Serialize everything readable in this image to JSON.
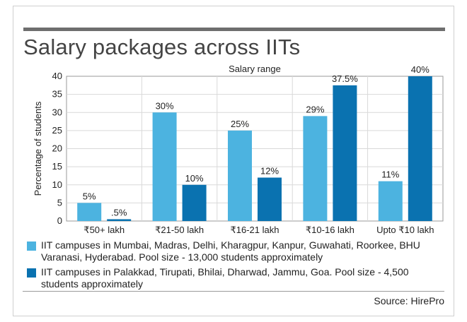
{
  "title": "Salary packages across IITs",
  "chart_data": {
    "type": "bar",
    "title": "Salary packages across IITs",
    "subtitle": "Salary range",
    "ylabel": "Percentage of students",
    "xlabel": "",
    "ylim": [
      0,
      40
    ],
    "yticks": [
      0,
      5,
      10,
      15,
      20,
      25,
      30,
      35,
      40
    ],
    "categories": [
      "₹50+ lakh",
      "₹21-50 lakh",
      "₹16-21 lakh",
      "₹10-16 lakh",
      "Upto ₹10 lakh"
    ],
    "grid": true,
    "series": [
      {
        "name": "IIT campuses in Mumbai, Madras, Delhi, Kharagpur, Kanpur, Guwahati, Roorkee, BHU Varanasi, Hyderabad. Pool size - 13,000 students approximately",
        "color": "#4cb3e0",
        "values": [
          5,
          30,
          25,
          29,
          11
        ],
        "labels": [
          "5%",
          "30%",
          "25%",
          "29%",
          "11%"
        ]
      },
      {
        "name": "IIT campuses in Palakkad, Tirupati, Bhilai, Dharwad, Jammu, Goa. Pool size - 4,500 students approximately",
        "color": "#0a72b0",
        "values": [
          0.5,
          10,
          12,
          37.5,
          40
        ],
        "labels": [
          ".5%",
          "10%",
          "12%",
          "37.5%",
          "40%"
        ]
      }
    ]
  },
  "source": "Source: HirePro"
}
